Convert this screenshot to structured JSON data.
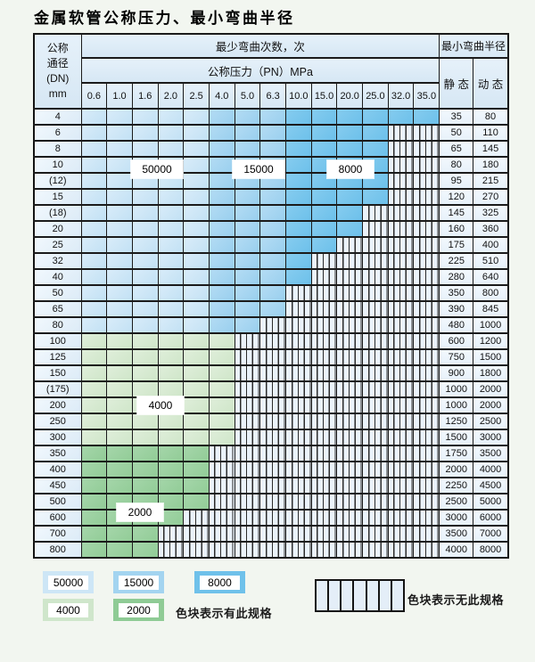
{
  "title": "金属软管公称压力、最小弯曲半径",
  "table": {
    "dn_header": {
      "l1": "公称",
      "l2": "通径",
      "l3": "(DN)",
      "l4": "mm"
    },
    "cycles_header": "最少弯曲次数，次",
    "pressure_header": "公称压力（PN）MPa",
    "radius_header": "最小弯曲半径",
    "static_header": "静 态",
    "dynamic_header": "动 态",
    "pressures": [
      "0.6",
      "1.0",
      "1.6",
      "2.0",
      "2.5",
      "4.0",
      "5.0",
      "6.3",
      "10.0",
      "15.0",
      "20.0",
      "25.0",
      "32.0",
      "35.0"
    ],
    "rows": [
      {
        "dn": "4",
        "filled": 14,
        "band": "b",
        "static": "35",
        "dynamic": "80"
      },
      {
        "dn": "6",
        "filled": 12,
        "band": "b",
        "static": "50",
        "dynamic": "110"
      },
      {
        "dn": "8",
        "filled": 12,
        "band": "b",
        "static": "65",
        "dynamic": "145"
      },
      {
        "dn": "10",
        "filled": 12,
        "band": "b",
        "static": "80",
        "dynamic": "180"
      },
      {
        "dn": "(12)",
        "filled": 12,
        "band": "b",
        "static": "95",
        "dynamic": "215"
      },
      {
        "dn": "15",
        "filled": 12,
        "band": "b",
        "static": "120",
        "dynamic": "270"
      },
      {
        "dn": "(18)",
        "filled": 11,
        "band": "b",
        "static": "145",
        "dynamic": "325"
      },
      {
        "dn": "20",
        "filled": 11,
        "band": "b",
        "static": "160",
        "dynamic": "360"
      },
      {
        "dn": "25",
        "filled": 10,
        "band": "b",
        "static": "175",
        "dynamic": "400"
      },
      {
        "dn": "32",
        "filled": 9,
        "band": "b",
        "static": "225",
        "dynamic": "510"
      },
      {
        "dn": "40",
        "filled": 9,
        "band": "b",
        "static": "280",
        "dynamic": "640"
      },
      {
        "dn": "50",
        "filled": 8,
        "band": "b",
        "static": "350",
        "dynamic": "800"
      },
      {
        "dn": "65",
        "filled": 8,
        "band": "b",
        "static": "390",
        "dynamic": "845"
      },
      {
        "dn": "80",
        "filled": 7,
        "band": "b",
        "static": "480",
        "dynamic": "1000"
      },
      {
        "dn": "100",
        "filled": 6,
        "band": "g1",
        "static": "600",
        "dynamic": "1200"
      },
      {
        "dn": "125",
        "filled": 6,
        "band": "g1",
        "static": "750",
        "dynamic": "1500"
      },
      {
        "dn": "150",
        "filled": 6,
        "band": "g1",
        "static": "900",
        "dynamic": "1800"
      },
      {
        "dn": "(175)",
        "filled": 6,
        "band": "g1",
        "static": "1000",
        "dynamic": "2000"
      },
      {
        "dn": "200",
        "filled": 6,
        "band": "g1",
        "static": "1000",
        "dynamic": "2000"
      },
      {
        "dn": "250",
        "filled": 6,
        "band": "g1",
        "static": "1250",
        "dynamic": "2500"
      },
      {
        "dn": "300",
        "filled": 6,
        "band": "g1",
        "static": "1500",
        "dynamic": "3000"
      },
      {
        "dn": "350",
        "filled": 5,
        "band": "g2",
        "static": "1750",
        "dynamic": "3500"
      },
      {
        "dn": "400",
        "filled": 5,
        "band": "g2",
        "static": "2000",
        "dynamic": "4000"
      },
      {
        "dn": "450",
        "filled": 5,
        "band": "g2",
        "static": "2250",
        "dynamic": "4500"
      },
      {
        "dn": "500",
        "filled": 5,
        "band": "g2",
        "static": "2500",
        "dynamic": "5000"
      },
      {
        "dn": "600",
        "filled": 4,
        "band": "g2",
        "static": "3000",
        "dynamic": "6000"
      },
      {
        "dn": "700",
        "filled": 3,
        "band": "g2",
        "static": "3500",
        "dynamic": "7000"
      },
      {
        "dn": "800",
        "filled": 3,
        "band": "g2",
        "static": "4000",
        "dynamic": "8000"
      }
    ]
  },
  "overlays": {
    "o50000": "50000",
    "o15000": "15000",
    "o8000": "8000",
    "o4000": "4000",
    "o2000": "2000"
  },
  "legend": {
    "chips": [
      {
        "label": "50000",
        "color": "#cde6f6"
      },
      {
        "label": "15000",
        "color": "#a3d4f0"
      },
      {
        "label": "8000",
        "color": "#6fc1ea"
      },
      {
        "label": "4000",
        "color": "#cfe6cb"
      },
      {
        "label": "2000",
        "color": "#8fcb95"
      }
    ],
    "has_spec_text": "色块表示有此规格",
    "no_spec_text": "色块表示无此规格"
  },
  "colors": {
    "cycles_50000": "#c2e1f4",
    "cycles_15000": "#99cfee",
    "cycles_8000": "#6cc0ea",
    "cycles_4000": "#cfe6c9",
    "cycles_2000": "#92cc97",
    "no_spec_bg": "#ebf3fb"
  }
}
